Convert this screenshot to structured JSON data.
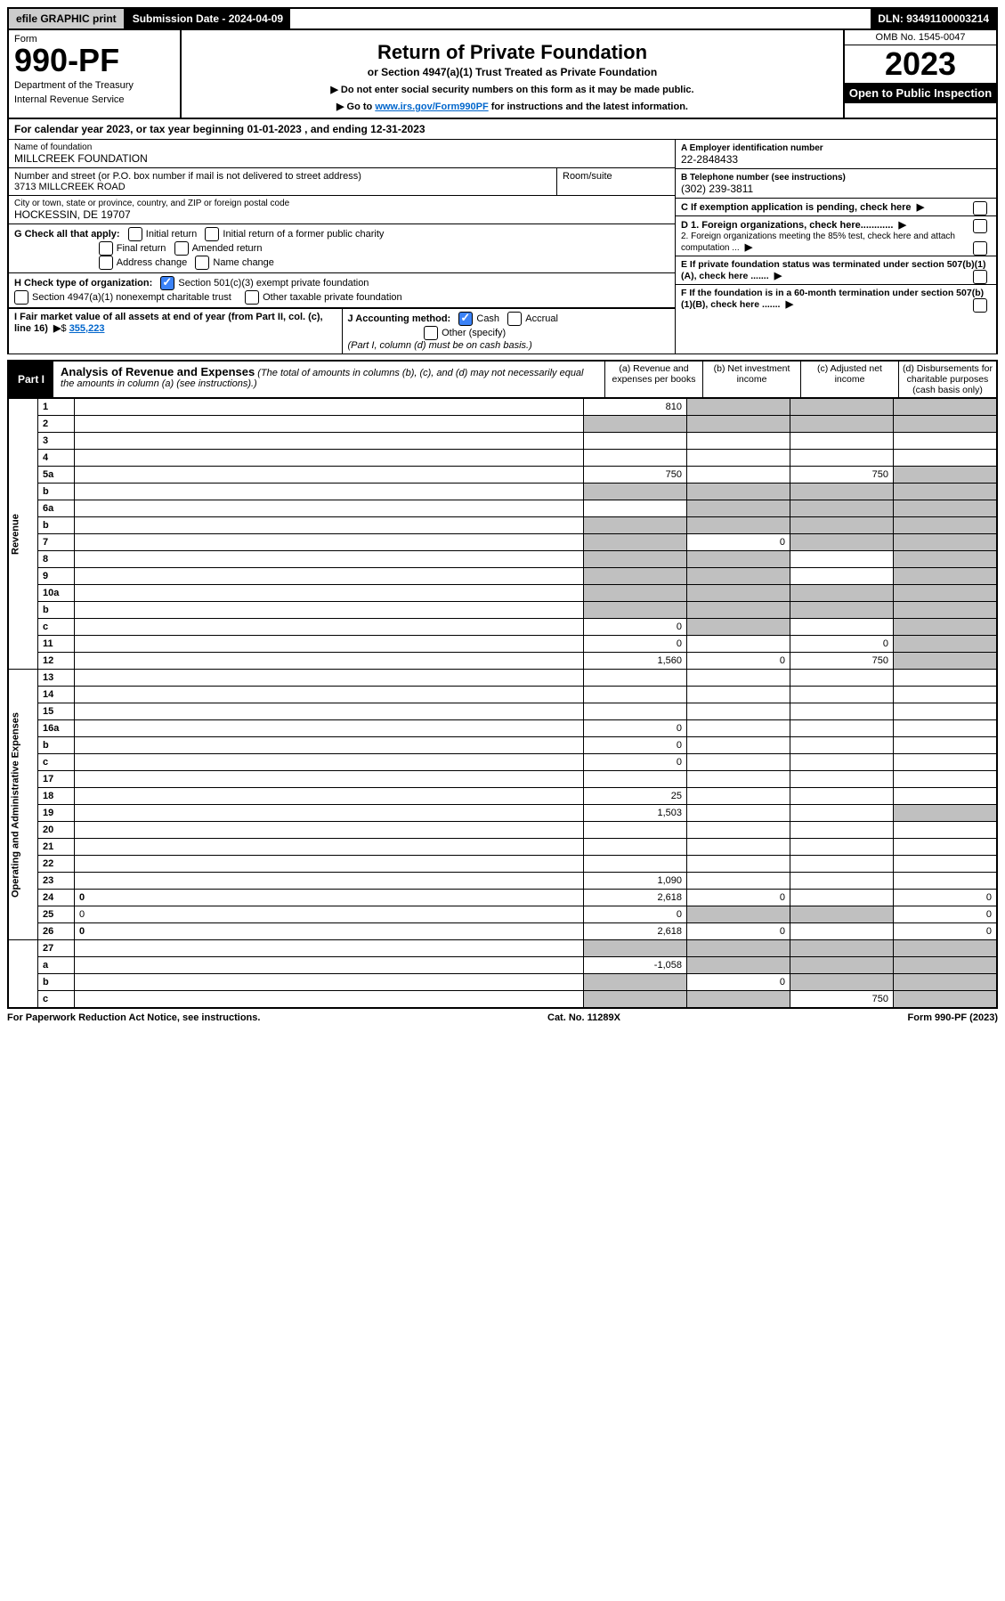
{
  "topbar": {
    "efile": "efile GRAPHIC print",
    "submission": "Submission Date - 2024-04-09",
    "dln": "DLN: 93491100003214"
  },
  "header": {
    "form_label": "Form",
    "form_number": "990-PF",
    "dept1": "Department of the Treasury",
    "dept2": "Internal Revenue Service",
    "title": "Return of Private Foundation",
    "subtitle": "or Section 4947(a)(1) Trust Treated as Private Foundation",
    "note1": "▶ Do not enter social security numbers on this form as it may be made public.",
    "note2_pre": "▶ Go to ",
    "note2_link": "www.irs.gov/Form990PF",
    "note2_post": " for instructions and the latest information.",
    "omb": "OMB No. 1545-0047",
    "year": "2023",
    "open": "Open to Public Inspection"
  },
  "calyear": "For calendar year 2023, or tax year beginning 01-01-2023                  , and ending 12-31-2023",
  "identity": {
    "name_lbl": "Name of foundation",
    "name": "MILLCREEK FOUNDATION",
    "addr_lbl": "Number and street (or P.O. box number if mail is not delivered to street address)",
    "addr": "3713 MILLCREEK ROAD",
    "room_lbl": "Room/suite",
    "city_lbl": "City or town, state or province, country, and ZIP or foreign postal code",
    "city": "HOCKESSIN, DE  19707",
    "a_lbl": "A Employer identification number",
    "a_val": "22-2848433",
    "b_lbl": "B Telephone number (see instructions)",
    "b_val": "(302) 239-3811",
    "c_lbl": "C If exemption application is pending, check here",
    "d1": "D 1. Foreign organizations, check here............",
    "d2": "2. Foreign organizations meeting the 85% test, check here and attach computation ...",
    "e_lbl": "E  If private foundation status was terminated under section 507(b)(1)(A), check here .......",
    "f_lbl": "F  If the foundation is in a 60-month termination under section 507(b)(1)(B), check here .......",
    "g_lbl": "G Check all that apply:",
    "g1": "Initial return",
    "g2": "Initial return of a former public charity",
    "g3": "Final return",
    "g4": "Amended return",
    "g5": "Address change",
    "g6": "Name change",
    "h_lbl": "H Check type of organization:",
    "h1": "Section 501(c)(3) exempt private foundation",
    "h2": "Section 4947(a)(1) nonexempt charitable trust",
    "h3": "Other taxable private foundation",
    "i_lbl": "I Fair market value of all assets at end of year (from Part II, col. (c), line 16)",
    "i_val": "355,223",
    "j_lbl": "J Accounting method:",
    "j1": "Cash",
    "j2": "Accrual",
    "j3": "Other (specify)",
    "j_note": "(Part I, column (d) must be on cash basis.)"
  },
  "part1": {
    "tag": "Part I",
    "title": "Analysis of Revenue and Expenses",
    "sub": "(The total of amounts in columns (b), (c), and (d) may not necessarily equal the amounts in column (a) (see instructions).)",
    "col_a": "(a)  Revenue and expenses per books",
    "col_b": "(b)  Net investment income",
    "col_c": "(c)  Adjusted net income",
    "col_d": "(d)  Disbursements for charitable purposes (cash basis only)"
  },
  "sections": {
    "rev": "Revenue",
    "op": "Operating and Administrative Expenses"
  },
  "rows": [
    {
      "n": "1",
      "d": "",
      "a": "810",
      "b": "",
      "c": "",
      "grey_bcd": true
    },
    {
      "n": "2",
      "d": "",
      "a": "",
      "b": "",
      "c": "",
      "grey_all": true,
      "bold_check": true
    },
    {
      "n": "3",
      "d": "",
      "a": "",
      "b": "",
      "c": ""
    },
    {
      "n": "4",
      "d": "",
      "a": "",
      "b": "",
      "c": ""
    },
    {
      "n": "5a",
      "d": "",
      "a": "750",
      "b": "",
      "c": "750",
      "grey_d": true
    },
    {
      "n": "b",
      "d": "",
      "a": "",
      "b": "",
      "c": "",
      "grey_all": true,
      "inline": true
    },
    {
      "n": "6a",
      "d": "",
      "a": "",
      "b": "",
      "c": "",
      "grey_bcd": true
    },
    {
      "n": "b",
      "d": "",
      "a": "",
      "b": "",
      "c": "",
      "grey_all": true,
      "inline": true
    },
    {
      "n": "7",
      "d": "",
      "a": "",
      "b": "0",
      "c": "",
      "grey_a": true,
      "grey_cd": true
    },
    {
      "n": "8",
      "d": "",
      "a": "",
      "b": "",
      "c": "",
      "grey_ab": true,
      "grey_d": true
    },
    {
      "n": "9",
      "d": "",
      "a": "",
      "b": "",
      "c": "",
      "grey_ab": true,
      "grey_d": true
    },
    {
      "n": "10a",
      "d": "",
      "a": "",
      "b": "",
      "c": "",
      "grey_all": true,
      "inline": true
    },
    {
      "n": "b",
      "d": "",
      "a": "",
      "b": "",
      "c": "",
      "grey_all": true,
      "inline": true
    },
    {
      "n": "c",
      "d": "",
      "a": "0",
      "b": "",
      "c": "",
      "grey_b": true,
      "grey_d": true
    },
    {
      "n": "11",
      "d": "",
      "a": "0",
      "b": "",
      "c": "0",
      "grey_d": true
    },
    {
      "n": "12",
      "d": "",
      "a": "1,560",
      "b": "0",
      "c": "750",
      "bold": true,
      "grey_d": true
    }
  ],
  "rows2": [
    {
      "n": "13",
      "d": "",
      "a": "",
      "b": "",
      "c": ""
    },
    {
      "n": "14",
      "d": "",
      "a": "",
      "b": "",
      "c": ""
    },
    {
      "n": "15",
      "d": "",
      "a": "",
      "b": "",
      "c": ""
    },
    {
      "n": "16a",
      "d": "",
      "a": "0",
      "b": "",
      "c": ""
    },
    {
      "n": "b",
      "d": "",
      "a": "0",
      "b": "",
      "c": ""
    },
    {
      "n": "c",
      "d": "",
      "a": "0",
      "b": "",
      "c": ""
    },
    {
      "n": "17",
      "d": "",
      "a": "",
      "b": "",
      "c": ""
    },
    {
      "n": "18",
      "d": "",
      "a": "25",
      "b": "",
      "c": ""
    },
    {
      "n": "19",
      "d": "",
      "a": "1,503",
      "b": "",
      "c": "",
      "grey_d": true
    },
    {
      "n": "20",
      "d": "",
      "a": "",
      "b": "",
      "c": ""
    },
    {
      "n": "21",
      "d": "",
      "a": "",
      "b": "",
      "c": ""
    },
    {
      "n": "22",
      "d": "",
      "a": "",
      "b": "",
      "c": ""
    },
    {
      "n": "23",
      "d": "",
      "a": "1,090",
      "b": "",
      "c": ""
    },
    {
      "n": "24",
      "d": "0",
      "a": "2,618",
      "b": "0",
      "c": "",
      "bold": true
    },
    {
      "n": "25",
      "d": "0",
      "a": "0",
      "b": "",
      "c": "",
      "grey_bc": true
    },
    {
      "n": "26",
      "d": "0",
      "a": "2,618",
      "b": "0",
      "c": "",
      "bold": true
    }
  ],
  "rows3": [
    {
      "n": "27",
      "d": "",
      "a": "",
      "b": "",
      "c": "",
      "grey_all": true
    },
    {
      "n": "a",
      "d": "",
      "a": "-1,058",
      "b": "",
      "c": "",
      "bold": true,
      "grey_bcd": true
    },
    {
      "n": "b",
      "d": "",
      "a": "",
      "b": "0",
      "c": "",
      "bold": true,
      "grey_a": true,
      "grey_cd": true
    },
    {
      "n": "c",
      "d": "",
      "a": "",
      "b": "",
      "c": "750",
      "bold": true,
      "grey_ab": true,
      "grey_d": true
    }
  ],
  "footer": {
    "left": "For Paperwork Reduction Act Notice, see instructions.",
    "mid": "Cat. No. 11289X",
    "right": "Form 990-PF (2023)"
  }
}
